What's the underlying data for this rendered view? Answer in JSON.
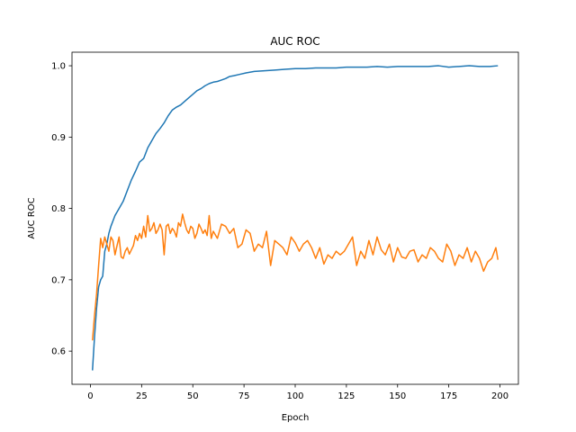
{
  "chart_data": {
    "type": "line",
    "title": "AUC ROC",
    "xlabel": "Epoch",
    "ylabel": "AUC ROC",
    "xlim": [
      -9,
      209
    ],
    "ylim": [
      0.5535,
      1.019
    ],
    "xticks": [
      0,
      25,
      50,
      75,
      100,
      125,
      150,
      175,
      200
    ],
    "yticks": [
      0.6,
      0.7,
      0.8,
      0.9,
      1.0
    ],
    "ytick_labels": [
      "0.6",
      "0.7",
      "0.8",
      "0.9",
      "1.0"
    ],
    "grid": false,
    "legend": "none",
    "series": [
      {
        "color": "#1f77b4",
        "x": [
          1,
          2,
          3,
          4,
          5,
          6,
          7,
          8,
          9,
          10,
          12,
          14,
          16,
          18,
          20,
          22,
          24,
          26,
          28,
          30,
          32,
          34,
          36,
          38,
          40,
          42,
          44,
          46,
          48,
          50,
          52,
          54,
          56,
          58,
          60,
          62,
          64,
          66,
          68,
          70,
          73,
          76,
          80,
          85,
          90,
          95,
          100,
          105,
          110,
          115,
          120,
          125,
          130,
          135,
          140,
          145,
          150,
          155,
          160,
          165,
          170,
          175,
          180,
          185,
          190,
          195,
          199
        ],
        "y": [
          0.573,
          0.62,
          0.66,
          0.69,
          0.7,
          0.705,
          0.74,
          0.75,
          0.765,
          0.775,
          0.79,
          0.8,
          0.81,
          0.825,
          0.84,
          0.852,
          0.865,
          0.87,
          0.885,
          0.895,
          0.905,
          0.912,
          0.92,
          0.93,
          0.938,
          0.942,
          0.945,
          0.95,
          0.955,
          0.96,
          0.965,
          0.968,
          0.972,
          0.975,
          0.977,
          0.978,
          0.98,
          0.982,
          0.985,
          0.986,
          0.988,
          0.99,
          0.992,
          0.993,
          0.994,
          0.995,
          0.996,
          0.996,
          0.997,
          0.997,
          0.997,
          0.998,
          0.998,
          0.998,
          0.999,
          0.998,
          0.999,
          0.999,
          0.999,
          0.999,
          1.0,
          0.998,
          0.999,
          1.0,
          0.999,
          0.999,
          1.0
        ]
      },
      {
        "color": "#ff7f0e",
        "x": [
          1,
          2,
          3,
          4,
          5,
          6,
          7,
          8,
          9,
          10,
          11,
          12,
          13,
          14,
          15,
          16,
          17,
          18,
          19,
          20,
          21,
          22,
          23,
          24,
          25,
          26,
          27,
          28,
          29,
          30,
          31,
          32,
          33,
          34,
          35,
          36,
          37,
          38,
          39,
          40,
          41,
          42,
          43,
          44,
          45,
          46,
          47,
          48,
          49,
          50,
          51,
          52,
          53,
          54,
          55,
          56,
          57,
          58,
          59,
          60,
          62,
          64,
          66,
          68,
          70,
          72,
          74,
          76,
          78,
          80,
          82,
          84,
          86,
          88,
          90,
          92,
          94,
          96,
          98,
          100,
          102,
          104,
          106,
          108,
          110,
          112,
          114,
          116,
          118,
          120,
          122,
          124,
          126,
          128,
          130,
          132,
          134,
          136,
          138,
          140,
          142,
          144,
          146,
          148,
          150,
          152,
          154,
          156,
          158,
          160,
          162,
          164,
          166,
          168,
          170,
          172,
          174,
          176,
          178,
          180,
          182,
          184,
          186,
          188,
          190,
          192,
          194,
          196,
          198,
          199
        ],
        "y": [
          0.615,
          0.65,
          0.68,
          0.72,
          0.758,
          0.745,
          0.76,
          0.75,
          0.74,
          0.76,
          0.755,
          0.735,
          0.748,
          0.76,
          0.732,
          0.73,
          0.74,
          0.745,
          0.736,
          0.742,
          0.748,
          0.762,
          0.755,
          0.765,
          0.758,
          0.775,
          0.76,
          0.79,
          0.768,
          0.772,
          0.78,
          0.765,
          0.77,
          0.778,
          0.77,
          0.735,
          0.775,
          0.778,
          0.765,
          0.772,
          0.768,
          0.76,
          0.78,
          0.775,
          0.792,
          0.78,
          0.77,
          0.765,
          0.775,
          0.772,
          0.758,
          0.765,
          0.778,
          0.772,
          0.765,
          0.77,
          0.762,
          0.79,
          0.758,
          0.768,
          0.758,
          0.778,
          0.775,
          0.765,
          0.772,
          0.745,
          0.75,
          0.77,
          0.765,
          0.74,
          0.75,
          0.745,
          0.768,
          0.72,
          0.755,
          0.75,
          0.745,
          0.735,
          0.76,
          0.752,
          0.74,
          0.75,
          0.755,
          0.745,
          0.73,
          0.745,
          0.722,
          0.735,
          0.73,
          0.74,
          0.735,
          0.74,
          0.75,
          0.76,
          0.72,
          0.74,
          0.73,
          0.755,
          0.735,
          0.76,
          0.742,
          0.735,
          0.75,
          0.725,
          0.745,
          0.732,
          0.73,
          0.74,
          0.742,
          0.725,
          0.735,
          0.73,
          0.745,
          0.74,
          0.73,
          0.725,
          0.75,
          0.74,
          0.72,
          0.735,
          0.73,
          0.745,
          0.725,
          0.74,
          0.73,
          0.712,
          0.725,
          0.73,
          0.745,
          0.728
        ]
      }
    ]
  }
}
